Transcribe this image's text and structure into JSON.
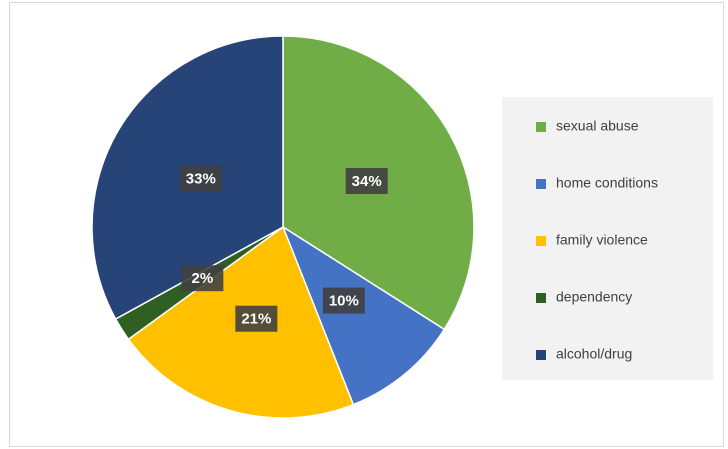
{
  "chart_data": {
    "type": "pie",
    "categories": [
      "sexual abuse",
      "home conditions",
      "family violence",
      "dependency",
      "alcohol/drug"
    ],
    "values": [
      34,
      10,
      21,
      2,
      33
    ],
    "value_labels": [
      "34%",
      "10%",
      "21%",
      "2%",
      "33%"
    ],
    "colors": [
      "#70ad47",
      "#4472c4",
      "#ffc000",
      "#2f5f22",
      "#264478"
    ],
    "legend": "right"
  }
}
